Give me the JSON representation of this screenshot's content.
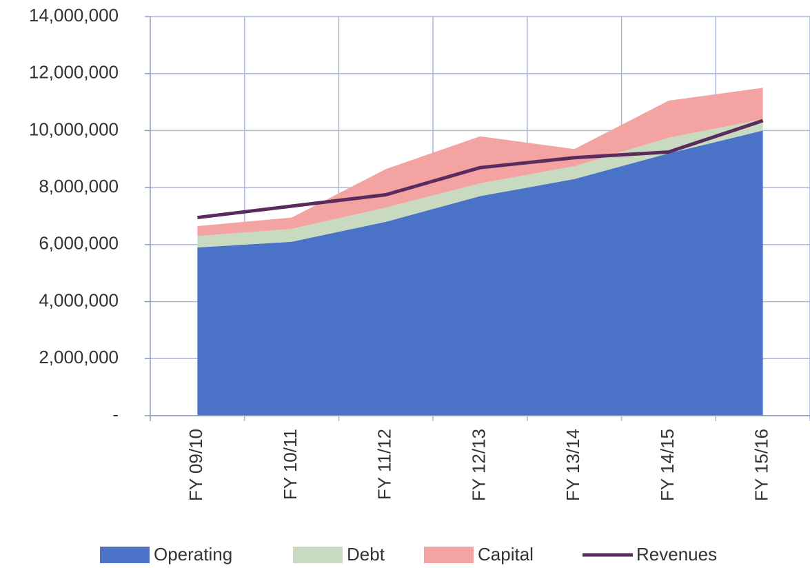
{
  "chart_data": {
    "type": "stacked-area",
    "categories": [
      "FY 09/10",
      "FY 10/11",
      "FY 11/12",
      "FY 12/13",
      "FY 13/14",
      "FY 14/15",
      "FY 15/16"
    ],
    "series": [
      {
        "name": "Operating",
        "color": "#4a72c6",
        "values": [
          5900000,
          6100000,
          6800000,
          7700000,
          8300000,
          9200000,
          10000000
        ]
      },
      {
        "name": "Debt",
        "color": "#c8dbc0",
        "values": [
          400000,
          450000,
          500000,
          450000,
          450000,
          550000,
          400000
        ]
      },
      {
        "name": "Capital",
        "color": "#f4a3a3",
        "values": [
          350000,
          400000,
          1350000,
          1650000,
          600000,
          1300000,
          1100000
        ]
      },
      {
        "name": "Revenues",
        "color": "#5a2c5e",
        "type": "line",
        "values": [
          6950000,
          7350000,
          7750000,
          8700000,
          9050000,
          9250000,
          10350000
        ]
      }
    ],
    "ylim": [
      0,
      14000000
    ],
    "yticks": [
      {
        "value": 0,
        "label": "-"
      },
      {
        "value": 2000000,
        "label": "2,000,000"
      },
      {
        "value": 4000000,
        "label": "4,000,000"
      },
      {
        "value": 6000000,
        "label": "6,000,000"
      },
      {
        "value": 8000000,
        "label": "8,000,000"
      },
      {
        "value": 10000000,
        "label": "10,000,000"
      },
      {
        "value": 12000000,
        "label": "12,000,000"
      },
      {
        "value": 14000000,
        "label": "14,000,000"
      }
    ],
    "grid": true
  }
}
